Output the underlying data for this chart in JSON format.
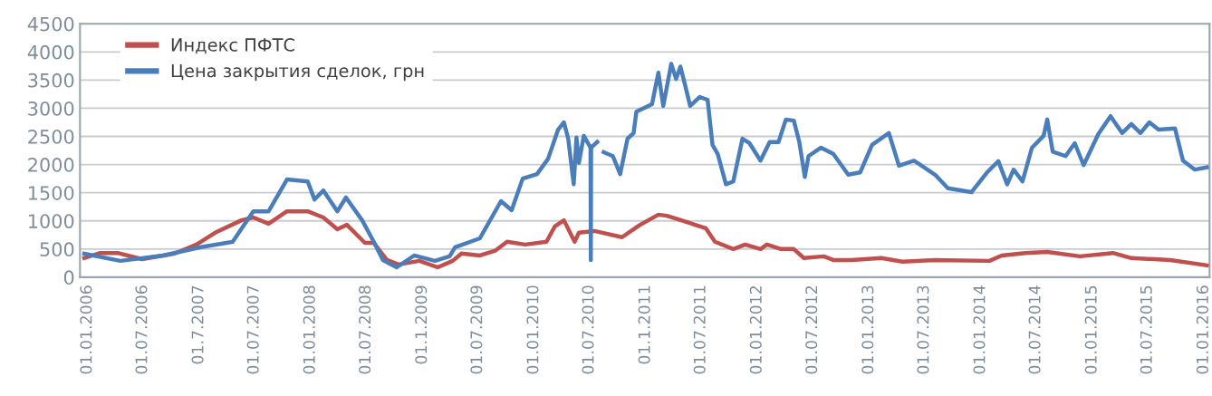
{
  "chart_data": {
    "type": "line",
    "xlim": [
      "2005-12-08",
      "2016-01-20"
    ],
    "ylim": [
      0,
      4500
    ],
    "yticks": [
      0,
      500,
      1000,
      1500,
      2000,
      2500,
      3000,
      3500,
      4000,
      4500
    ],
    "xticks": [
      {
        "value": "2006-01-01",
        "label": "01.01.2006"
      },
      {
        "value": "2006-07-01",
        "label": "01.07.2006"
      },
      {
        "value": "2007-01-01",
        "label": "01.7.2007"
      },
      {
        "value": "2007-07-01",
        "label": "01.07.2007"
      },
      {
        "value": "2008-01-01",
        "label": "01.01.2008"
      },
      {
        "value": "2008-07-01",
        "label": "01.07.2008"
      },
      {
        "value": "2009-01-01",
        "label": "01.1.2009"
      },
      {
        "value": "2009-07-01",
        "label": "01.07.2009"
      },
      {
        "value": "2010-01-01",
        "label": "01.01.2010"
      },
      {
        "value": "2010-07-01",
        "label": "01.07.2010"
      },
      {
        "value": "2011-01-01",
        "label": "01.1.2011"
      },
      {
        "value": "2011-07-01",
        "label": "01.07.2011"
      },
      {
        "value": "2012-01-01",
        "label": "01.01.2012"
      },
      {
        "value": "2012-07-01",
        "label": "01.07.2012"
      },
      {
        "value": "2013-01-01",
        "label": "01.01.2013"
      },
      {
        "value": "2013-07-01",
        "label": "01.07.2013"
      },
      {
        "value": "2014-01-01",
        "label": "01.01.2014"
      },
      {
        "value": "2014-07-01",
        "label": "01.07.2014"
      },
      {
        "value": "2015-01-01",
        "label": "01.01.2015"
      },
      {
        "value": "2015-07-01",
        "label": "01.07.2015"
      },
      {
        "value": "2016-01-01",
        "label": "01.01.2016"
      }
    ],
    "grid": "y",
    "legend": "top left",
    "marker": "none",
    "line_style": "solid",
    "series": [
      {
        "name": "Индекс ПФТС",
        "color": "#c0504d",
        "x": [
          "2005-12-22",
          "2006-02-12",
          "2006-04-10",
          "2006-06-29",
          "2006-10-14",
          "2006-12-24",
          "2007-02-23",
          "2007-05-20",
          "2007-06-28",
          "2007-08-17",
          "2007-10-16",
          "2007-12-23",
          "2008-02-12",
          "2008-03-29",
          "2008-04-29",
          "2008-06-27",
          "2008-07-26",
          "2008-09-07",
          "2008-10-15",
          "2008-12-22",
          "2009-02-20",
          "2009-04-10",
          "2009-05-09",
          "2009-07-08",
          "2009-08-27",
          "2009-10-05",
          "2009-12-03",
          "2010-02-11",
          "2010-03-10",
          "2010-04-09",
          "2010-05-14",
          "2010-05-28",
          "2010-07-18",
          "2010-10-16",
          "2010-12-14",
          "2011-02-12",
          "2011-03-12",
          "2011-04-28",
          "2011-07-17",
          "2011-08-16",
          "2011-10-15",
          "2011-11-23",
          "2012-01-12",
          "2012-02-02",
          "2012-03-19",
          "2012-04-30",
          "2012-06-02",
          "2012-08-06",
          "2012-09-06",
          "2012-11-04",
          "2013-02-10",
          "2013-04-20",
          "2013-08-05",
          "2014-01-30",
          "2014-03-11",
          "2014-05-27",
          "2014-08-07",
          "2014-11-22",
          "2015-03-10",
          "2015-05-09",
          "2015-09-14",
          "2016-01-11"
        ],
        "values": [
          340,
          430,
          430,
          320,
          420,
          580,
          790,
          1010,
          1060,
          950,
          1170,
          1170,
          1060,
          850,
          930,
          610,
          610,
          305,
          225,
          290,
          175,
          290,
          420,
          385,
          470,
          630,
          580,
          630,
          900,
          1010,
          630,
          790,
          820,
          710,
          930,
          1110,
          1090,
          1010,
          870,
          630,
          500,
          580,
          500,
          580,
          500,
          500,
          340,
          370,
          305,
          305,
          340,
          275,
          305,
          290,
          385,
          430,
          450,
          370,
          430,
          340,
          305,
          210
        ]
      },
      {
        "name": "Цена закрытия сделок, грн",
        "color": "#4a7ebb",
        "x": [
          "2005-12-22",
          "2006-04-19",
          "2006-09-06",
          "2007-01-03",
          "2007-04-21",
          "2007-06-28",
          "2007-08-17",
          "2007-10-16",
          "2007-12-23",
          "2008-01-14",
          "2008-02-12",
          "2008-03-29",
          "2008-04-26",
          "2008-06-18",
          "2008-07-26",
          "2008-08-25",
          "2008-10-09",
          "2008-12-05",
          "2009-02-11",
          "2009-03-31",
          "2009-04-18",
          "2009-07-08",
          "2009-09-15",
          "2009-10-20",
          "2009-11-25",
          "2010-01-11",
          "2010-02-16",
          "2010-03-21",
          "2010-04-09",
          "2010-04-23",
          "2010-05-11",
          "2010-05-20",
          "2010-05-28",
          "2010-06-13",
          "2010-07-05",
          "2010-07-06",
          "2010-07-07",
          "2010-07-27",
          "2010-08-05",
          "2010-08-17",
          "2010-09-16",
          "2010-10-10",
          "2010-11-03",
          "2010-11-23",
          "2010-12-02",
          "2011-01-02",
          "2011-01-22",
          "2011-02-12",
          "2011-02-28",
          "2011-03-26",
          "2011-04-11",
          "2011-04-25",
          "2011-05-10",
          "2011-05-27",
          "2011-06-27",
          "2011-07-23",
          "2011-08-08",
          "2011-08-25",
          "2011-09-21",
          "2011-10-15",
          "2011-11-14",
          "2011-12-07",
          "2012-01-12",
          "2012-02-11",
          "2012-03-11",
          "2012-04-04",
          "2012-04-30",
          "2012-05-18",
          "2012-06-05",
          "2012-06-17",
          "2012-07-28",
          "2012-09-06",
          "2012-10-25",
          "2012-12-03",
          "2013-01-11",
          "2013-03-07",
          "2013-04-09",
          "2013-05-28",
          "2013-08-05",
          "2013-09-16",
          "2013-12-02",
          "2014-01-22",
          "2014-02-28",
          "2014-03-29",
          "2014-04-19",
          "2014-05-18",
          "2014-06-18",
          "2014-07-26",
          "2014-08-07",
          "2014-08-25",
          "2014-10-06",
          "2014-11-05",
          "2014-12-04",
          "2015-01-21",
          "2015-03-02",
          "2015-04-09",
          "2015-05-09",
          "2015-06-08",
          "2015-07-07",
          "2015-08-06",
          "2015-09-29",
          "2015-10-25",
          "2015-12-03",
          "2016-01-11"
        ],
        "values": [
          418,
          290,
          385,
          530,
          627,
          1170,
          1170,
          1735,
          1700,
          1380,
          1540,
          1170,
          1415,
          1010,
          630,
          305,
          175,
          385,
          290,
          370,
          530,
          690,
          1350,
          1190,
          1750,
          1830,
          2100,
          2620,
          2750,
          2460,
          1650,
          2480,
          2030,
          2510,
          2300,
          305,
          2300,
          2400,
          null,
          2220,
          2150,
          1830,
          2460,
          2560,
          2940,
          3020,
          3070,
          3630,
          3040,
          3790,
          3520,
          3740,
          3420,
          3040,
          3200,
          3150,
          2350,
          2190,
          1650,
          1700,
          2460,
          2380,
          2070,
          2400,
          2400,
          2800,
          2780,
          2400,
          1780,
          2150,
          2300,
          2190,
          1820,
          1860,
          2350,
          2560,
          1980,
          2070,
          1820,
          1580,
          1510,
          1860,
          2060,
          1650,
          1910,
          1700,
          2300,
          2510,
          2800,
          2230,
          2150,
          2380,
          1990,
          2540,
          2860,
          2560,
          2720,
          2560,
          2750,
          2620,
          2640,
          2070,
          1910,
          1950
        ]
      }
    ]
  }
}
